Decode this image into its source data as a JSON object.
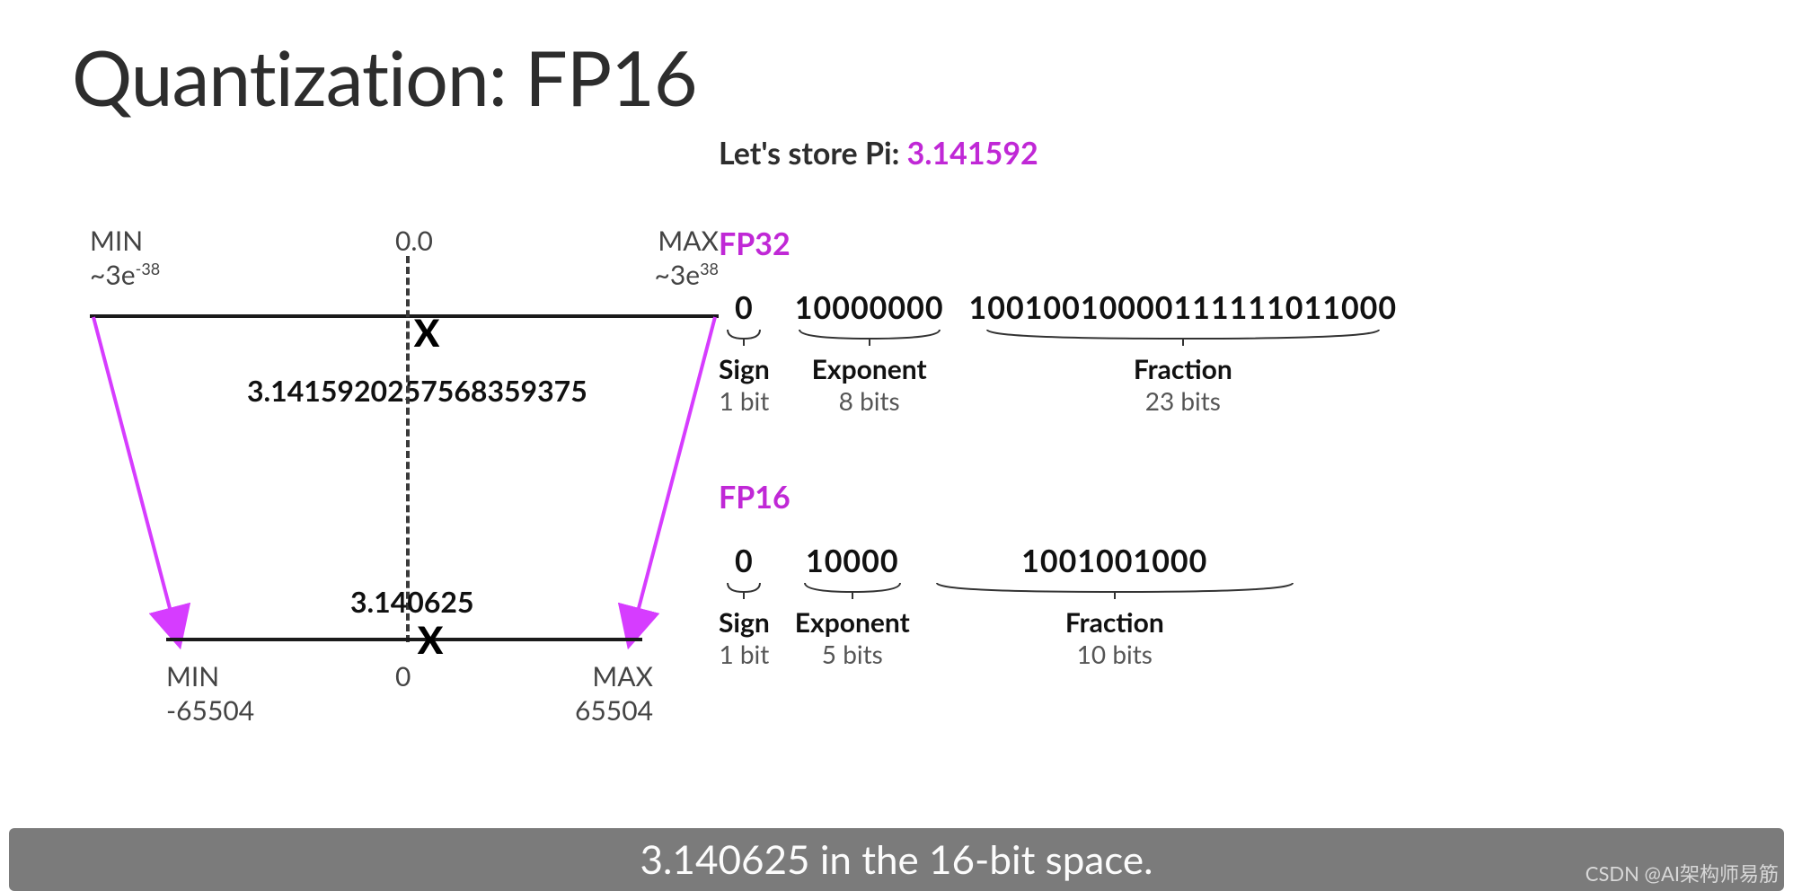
{
  "title": "Quantization: FP16",
  "colors": {
    "accent": "#c028d6",
    "arrow": "#d63cff",
    "text": "#2d2d2d",
    "caption_bg": "#7b7b7b"
  },
  "diagram": {
    "fp32": {
      "min_label": "MIN",
      "min_val_html": "~3e<sup>-38</sup>",
      "max_label": "MAX",
      "max_val_html": "~3e<sup>38</sup>",
      "center_label": "0.0",
      "stored_value": "3.1415920257568359375"
    },
    "fp16": {
      "min_label": "MIN",
      "min_val": "-65504",
      "max_label": "MAX",
      "max_val": "65504",
      "center_label": "0",
      "stored_value": "3.140625"
    }
  },
  "store": {
    "prefix": "Let's store Pi: ",
    "pi": "3.141592"
  },
  "fp32_bits": {
    "label": "FP32",
    "sign": {
      "bits": "0",
      "title": "Sign",
      "sub": "1 bit"
    },
    "exponent": {
      "bits": "10000000",
      "title": "Exponent",
      "sub": "8 bits"
    },
    "fraction": {
      "bits": "10010010000111111011000",
      "title": "Fraction",
      "sub": "23 bits"
    }
  },
  "fp16_bits": {
    "label": "FP16",
    "sign": {
      "bits": "0",
      "title": "Sign",
      "sub": "1 bit"
    },
    "exponent": {
      "bits": "10000",
      "title": "Exponent",
      "sub": "5 bits"
    },
    "fraction": {
      "bits": "1001001000",
      "title": "Fraction",
      "sub": "10 bits"
    }
  },
  "caption": "3.140625 in the 16-bit space.",
  "watermark": "CSDN @AI架构师易筋"
}
